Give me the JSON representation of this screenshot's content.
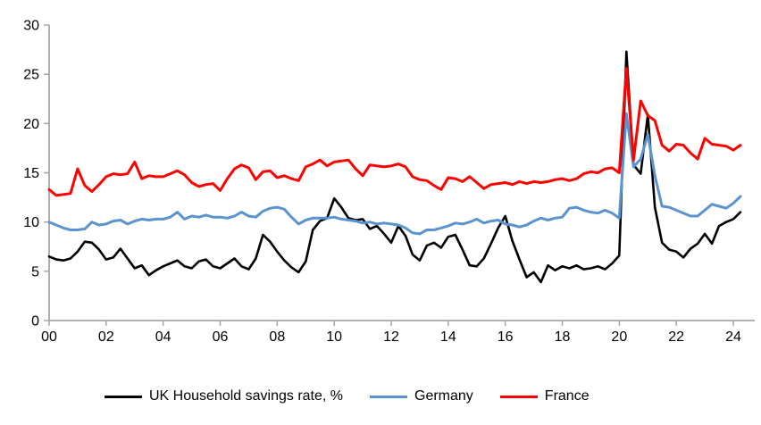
{
  "chart_data": {
    "type": "line",
    "title": "",
    "xlabel": "",
    "ylabel": "",
    "frequency": "quarterly",
    "x_start_year": 2000,
    "x_tick_labels": [
      "00",
      "02",
      "04",
      "06",
      "08",
      "10",
      "12",
      "14",
      "16",
      "18",
      "20",
      "22",
      "24"
    ],
    "y_ticks": [
      "0",
      "5",
      "10",
      "15",
      "20",
      "25",
      "30"
    ],
    "ylim": [
      0,
      30
    ],
    "grid": false,
    "legend_position": "bottom",
    "axis_color": "#A6A6A6",
    "text_color": "#000000",
    "series": [
      {
        "name": "UK Household savings rate, %",
        "color": "#000000",
        "values": [
          6.5,
          6.2,
          6.1,
          6.3,
          7.0,
          8.0,
          7.9,
          7.2,
          6.2,
          6.4,
          7.3,
          6.3,
          5.3,
          5.6,
          4.6,
          5.1,
          5.5,
          5.8,
          6.1,
          5.5,
          5.3,
          6.0,
          6.2,
          5.5,
          5.3,
          5.8,
          6.3,
          5.5,
          5.2,
          6.3,
          8.7,
          8.0,
          7.0,
          6.1,
          5.4,
          4.9,
          6.0,
          9.2,
          10.1,
          10.4,
          12.4,
          11.5,
          10.4,
          10.2,
          10.3,
          9.3,
          9.6,
          8.8,
          7.9,
          9.6,
          8.6,
          6.7,
          6.1,
          7.6,
          7.9,
          7.4,
          8.5,
          8.7,
          7.2,
          5.6,
          5.5,
          6.3,
          7.8,
          9.4,
          10.6,
          8.1,
          6.2,
          4.4,
          4.9,
          3.9,
          5.6,
          5.1,
          5.5,
          5.3,
          5.6,
          5.2,
          5.3,
          5.5,
          5.2,
          5.8,
          6.6,
          27.3,
          15.8,
          14.9,
          20.9,
          11.5,
          7.9,
          7.2,
          7.0,
          6.4,
          7.3,
          7.8,
          8.8,
          7.8,
          9.6,
          10.0,
          10.3,
          11.0
        ]
      },
      {
        "name": "Germany",
        "color": "#5B93CE",
        "values": [
          10.0,
          9.7,
          9.4,
          9.2,
          9.2,
          9.3,
          10.0,
          9.7,
          9.8,
          10.1,
          10.2,
          9.8,
          10.1,
          10.3,
          10.2,
          10.3,
          10.3,
          10.5,
          11.0,
          10.3,
          10.6,
          10.5,
          10.7,
          10.5,
          10.5,
          10.4,
          10.6,
          11.0,
          10.6,
          10.5,
          11.1,
          11.4,
          11.5,
          11.3,
          10.5,
          9.8,
          10.2,
          10.4,
          10.4,
          10.4,
          10.5,
          10.3,
          10.2,
          10.1,
          9.9,
          10.0,
          9.8,
          9.9,
          9.8,
          9.7,
          9.4,
          8.9,
          8.8,
          9.2,
          9.2,
          9.4,
          9.6,
          9.9,
          9.8,
          10.0,
          10.3,
          9.9,
          10.1,
          10.2,
          9.8,
          9.7,
          9.5,
          9.7,
          10.1,
          10.4,
          10.2,
          10.4,
          10.5,
          11.4,
          11.5,
          11.2,
          11.0,
          10.9,
          11.2,
          10.9,
          10.4,
          21.0,
          15.6,
          16.4,
          18.9,
          14.7,
          11.6,
          11.5,
          11.2,
          10.9,
          10.6,
          10.6,
          11.2,
          11.8,
          11.6,
          11.4,
          11.9,
          12.6
        ]
      },
      {
        "name": "France",
        "color": "#FF0000",
        "values": [
          13.3,
          12.7,
          12.8,
          12.9,
          15.4,
          13.7,
          13.1,
          13.8,
          14.6,
          14.9,
          14.8,
          14.9,
          16.1,
          14.4,
          14.7,
          14.6,
          14.6,
          14.9,
          15.2,
          14.8,
          14.0,
          13.6,
          13.8,
          13.9,
          13.2,
          14.4,
          15.4,
          15.8,
          15.5,
          14.3,
          15.1,
          15.2,
          14.5,
          14.7,
          14.4,
          14.2,
          15.6,
          15.9,
          16.3,
          15.7,
          16.1,
          16.2,
          16.3,
          15.4,
          14.7,
          15.8,
          15.7,
          15.6,
          15.7,
          15.9,
          15.6,
          14.6,
          14.3,
          14.2,
          13.7,
          13.3,
          14.5,
          14.4,
          14.1,
          14.6,
          14.0,
          13.4,
          13.8,
          13.9,
          14.0,
          13.8,
          14.1,
          13.9,
          14.1,
          14.0,
          14.1,
          14.3,
          14.4,
          14.2,
          14.4,
          14.9,
          15.1,
          15.0,
          15.4,
          15.5,
          15.0,
          25.6,
          16.3,
          22.3,
          20.8,
          20.3,
          17.8,
          17.2,
          17.9,
          17.8,
          17.0,
          16.4,
          18.5,
          17.9,
          17.8,
          17.7,
          17.3,
          17.8
        ]
      }
    ]
  },
  "legend": {
    "uk_label": "UK Household savings rate, %",
    "germany_label": "Germany",
    "france_label": "France"
  }
}
